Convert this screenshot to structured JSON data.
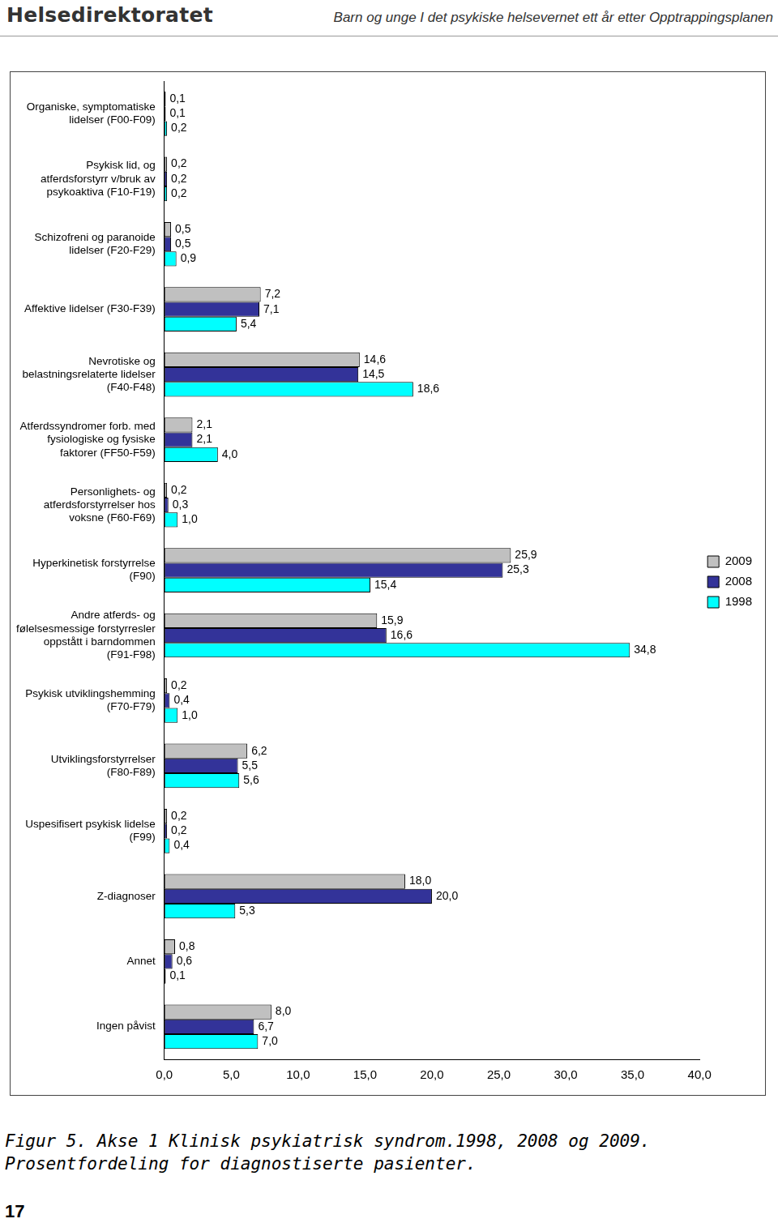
{
  "header": {
    "organization": "Helsedirektoratet",
    "title": "Barn og unge I det psykiske helsevernet ett år etter Opptrappingsplanen"
  },
  "page_number": "17",
  "chart_data": {
    "type": "bar",
    "orientation": "horizontal",
    "title": "Figur 5. Akse 1 Klinisk psykiatrisk syndrom.1998, 2008 og 2009. Prosentfordeling for diagnostiserte pasienter.",
    "categories": [
      "Organiske, symptomatiske lidelser (F00-F09)",
      "Psykisk lid, og atferdsforstyrr v/bruk av psykoaktiva (F10-F19)",
      "Schizofreni og paranoide lidelser (F20-F29)",
      "Affektive lidelser (F30-F39)",
      "Nevrotiske og belastningsrelaterte lidelser (F40-F48)",
      "Atferdssyndromer forb. med fysiologiske og fysiske faktorer (FF50-F59)",
      "Personlighets- og atferdsforstyrrelser hos voksne (F60-F69)",
      "Hyperkinetisk forstyrrelse (F90)",
      "Andre atferds- og følelsesmessige forstyrresler oppstått i barndommen (F91-F98)",
      "Psykisk utviklingshemming (F70-F79)",
      "Utviklingsforstyrrelser (F80-F89)",
      "Uspesifisert psykisk lidelse (F99)",
      "Z-diagnoser",
      "Annet",
      "Ingen påvist"
    ],
    "series": [
      {
        "name": "2009",
        "color": "#c0c0c0",
        "values": [
          0.1,
          0.2,
          0.5,
          7.2,
          14.6,
          2.1,
          0.2,
          25.9,
          15.9,
          0.2,
          6.2,
          0.2,
          18.0,
          0.8,
          8.0
        ],
        "value_labels": [
          "0,1",
          "0,2",
          "0,5",
          "7,2",
          "14,6",
          "2,1",
          "0,2",
          "25,9",
          "15,9",
          "0,2",
          "6,2",
          "0,2",
          "18,0",
          "0,8",
          "8,0"
        ]
      },
      {
        "name": "2008",
        "color": "#333399",
        "values": [
          0.1,
          0.2,
          0.5,
          7.1,
          14.5,
          2.1,
          0.3,
          25.3,
          16.6,
          0.4,
          5.5,
          0.2,
          20.0,
          0.6,
          6.7
        ],
        "value_labels": [
          "0,1",
          "0,2",
          "0,5",
          "7,1",
          "14,5",
          "2,1",
          "0,3",
          "25,3",
          "16,6",
          "0,4",
          "5,5",
          "0,2",
          "20,0",
          "0,6",
          "6,7"
        ]
      },
      {
        "name": "1998",
        "color": "#00ffff",
        "values": [
          0.2,
          0.2,
          0.9,
          5.4,
          18.6,
          4.0,
          1.0,
          15.4,
          34.8,
          1.0,
          5.6,
          0.4,
          5.3,
          0.1,
          7.0
        ],
        "value_labels": [
          "0,2",
          "0,2",
          "0,9",
          "5,4",
          "18,6",
          "4,0",
          "1,0",
          "15,4",
          "34,8",
          "1,0",
          "5,6",
          "0,4",
          "5,3",
          "0,1",
          "7,0"
        ]
      }
    ],
    "xlim": [
      0,
      40
    ],
    "xticks": [
      {
        "value": 0,
        "label": "0,0"
      },
      {
        "value": 5,
        "label": "5,0"
      },
      {
        "value": 10,
        "label": "10,0"
      },
      {
        "value": 15,
        "label": "15,0"
      },
      {
        "value": 20,
        "label": "20,0"
      },
      {
        "value": 25,
        "label": "25,0"
      },
      {
        "value": 30,
        "label": "30,0"
      },
      {
        "value": 35,
        "label": "35,0"
      },
      {
        "value": 40,
        "label": "40,0"
      }
    ],
    "grid": false,
    "legend": "right",
    "data_labels": true
  }
}
